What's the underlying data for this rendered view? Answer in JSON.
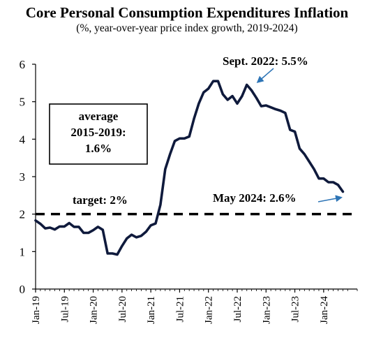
{
  "chart_data": {
    "type": "line",
    "title": "Core Personal Consumption Expenditures Inflation",
    "subtitle": "(%, year-over-year price index growth, 2019-2024)",
    "xlabel": "",
    "ylabel": "",
    "ylim": [
      0,
      6
    ],
    "yticks": [
      "0",
      "1",
      "2",
      "3",
      "4",
      "5",
      "6"
    ],
    "xticks": [
      "Jan-19",
      "Jul-19",
      "Jan-20",
      "Jul-20",
      "Jan-21",
      "Jul-21",
      "Jan-22",
      "Jul-22",
      "Jan-23",
      "Jul-23",
      "Jan-24"
    ],
    "grid": false,
    "legend": "none",
    "line_color": "#0f1a3c",
    "arrow_color": "#2e75b6",
    "series": [
      {
        "x": [
          "2019-01",
          "2019-02",
          "2019-03",
          "2019-04",
          "2019-05",
          "2019-06",
          "2019-07",
          "2019-08",
          "2019-09",
          "2019-10",
          "2019-11",
          "2019-12",
          "2020-01",
          "2020-02",
          "2020-03",
          "2020-04",
          "2020-05",
          "2020-06",
          "2020-07",
          "2020-08",
          "2020-09",
          "2020-10",
          "2020-11",
          "2020-12",
          "2021-01",
          "2021-02",
          "2021-03",
          "2021-04",
          "2021-05",
          "2021-06",
          "2021-07",
          "2021-08",
          "2021-09",
          "2021-10",
          "2021-11",
          "2021-12",
          "2022-01",
          "2022-02",
          "2022-03",
          "2022-04",
          "2022-05",
          "2022-06",
          "2022-07",
          "2022-08",
          "2022-09",
          "2022-10",
          "2022-11",
          "2022-12",
          "2023-01",
          "2023-02",
          "2023-03",
          "2023-04",
          "2023-05",
          "2023-06",
          "2023-07",
          "2023-08",
          "2023-09",
          "2023-10",
          "2023-11",
          "2023-12",
          "2024-01",
          "2024-02",
          "2024-03",
          "2024-04",
          "2024-05"
        ],
        "values": [
          1.83,
          1.74,
          1.62,
          1.64,
          1.59,
          1.67,
          1.67,
          1.76,
          1.66,
          1.66,
          1.5,
          1.5,
          1.57,
          1.66,
          1.58,
          0.95,
          0.95,
          0.92,
          1.15,
          1.35,
          1.45,
          1.38,
          1.42,
          1.53,
          1.7,
          1.75,
          2.25,
          3.2,
          3.6,
          3.95,
          4.02,
          4.02,
          4.07,
          4.55,
          4.95,
          5.25,
          5.35,
          5.55,
          5.55,
          5.2,
          5.05,
          5.15,
          4.95,
          5.15,
          5.45,
          5.3,
          5.1,
          4.88,
          4.9,
          4.85,
          4.8,
          4.76,
          4.7,
          4.25,
          4.2,
          3.75,
          3.6,
          3.4,
          3.2,
          2.95,
          2.95,
          2.85,
          2.85,
          2.78,
          2.6
        ]
      }
    ],
    "reference_lines": [
      {
        "label": "target: 2%",
        "y": 2,
        "style": "dashed"
      }
    ],
    "annotations": {
      "average": [
        "average",
        "2015-2019:",
        "1.6%"
      ],
      "peak": "Sept. 2022: 5.5%",
      "latest": "May 2024: 2.6%"
    }
  }
}
